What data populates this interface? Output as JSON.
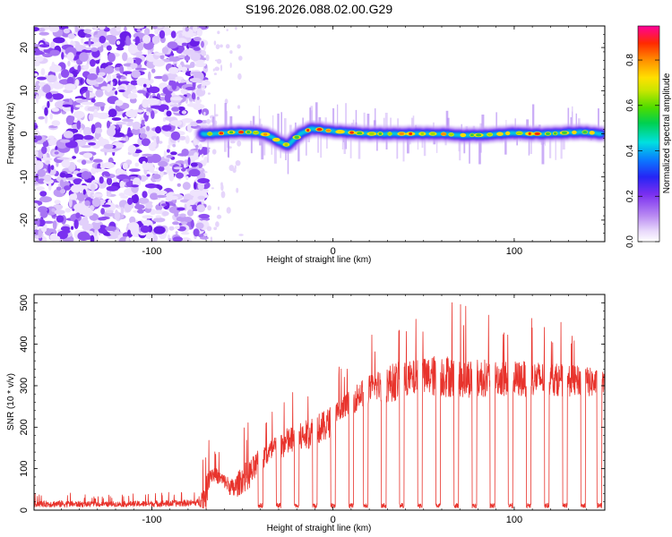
{
  "chart_data": [
    {
      "type": "heatmap",
      "title": "S196.2026.088.02.00.G29",
      "xlabel": "Height of straight line (km)",
      "ylabel": "Frequency (Hz)",
      "xlim": [
        -165,
        150
      ],
      "ylim": [
        -25,
        25
      ],
      "x_ticks": [
        -100,
        0,
        100
      ],
      "y_ticks": [
        -20,
        -10,
        0,
        10,
        20
      ],
      "noise_region_x": [
        -165,
        -72
      ],
      "ridge": {
        "x": [
          -72,
          -65,
          -55,
          -45,
          -38,
          -32,
          -28,
          -25,
          -22,
          -18,
          -12,
          -5,
          0,
          10,
          20,
          30,
          40,
          50,
          60,
          70,
          80,
          90,
          100,
          110,
          120,
          130,
          140,
          148
        ],
        "frequency_hz": [
          0.0,
          0.0,
          0.4,
          0.4,
          0.0,
          -1.2,
          -2.2,
          -2.6,
          -1.6,
          0.0,
          1.2,
          0.9,
          0.6,
          0.3,
          0.0,
          0.0,
          0.0,
          0.0,
          0.0,
          -0.3,
          -0.3,
          -0.1,
          0.2,
          0.0,
          0.0,
          0.3,
          0.4,
          0.0
        ]
      },
      "colorbar": {
        "label": "Normalized spectral amplitude",
        "range": [
          0.0,
          0.95
        ],
        "ticks": [
          "0.0",
          "0.2",
          "0.4",
          "0.6",
          "0.8"
        ]
      }
    },
    {
      "type": "line",
      "xlabel": "Height of straight line (km)",
      "ylabel": "SNR (10 * v/v)",
      "xlim": [
        -165,
        150
      ],
      "ylim": [
        0,
        520
      ],
      "x_ticks": [
        -100,
        0,
        100
      ],
      "y_ticks": [
        0,
        100,
        200,
        300,
        400,
        500
      ],
      "series": [
        {
          "name": "SNR",
          "color": "#e8332c",
          "x": [
            -165,
            -150,
            -130,
            -110,
            -90,
            -75,
            -70,
            -68,
            -65,
            -60,
            -55,
            -50,
            -45,
            -40,
            -35,
            -30,
            -25,
            -20,
            -15,
            -10,
            -5,
            0,
            5,
            10,
            15,
            20,
            25,
            30,
            35,
            40,
            50,
            60,
            70,
            80,
            90,
            100,
            110,
            120,
            130,
            140,
            150
          ],
          "mean": [
            15,
            15,
            14,
            15,
            16,
            18,
            40,
            90,
            85,
            70,
            50,
            75,
            90,
            120,
            140,
            150,
            165,
            170,
            180,
            195,
            200,
            220,
            240,
            260,
            280,
            290,
            300,
            305,
            310,
            315,
            320,
            325,
            320,
            318,
            320,
            315,
            318,
            316,
            312,
            310,
            300
          ],
          "peak": [
            40,
            45,
            35,
            40,
            45,
            45,
            180,
            180,
            150,
            130,
            140,
            200,
            220,
            230,
            240,
            280,
            290,
            300,
            310,
            330,
            340,
            350,
            360,
            380,
            400,
            420,
            440,
            470,
            480,
            470,
            490,
            515,
            500,
            490,
            470,
            480,
            470,
            460,
            450,
            440,
            420
          ]
        }
      ],
      "dropouts_x": [
        -40,
        -30,
        -20,
        -10,
        0,
        10,
        18,
        28,
        38,
        48,
        58,
        68,
        78,
        88,
        98,
        108,
        118,
        128,
        138,
        147
      ]
    }
  ]
}
